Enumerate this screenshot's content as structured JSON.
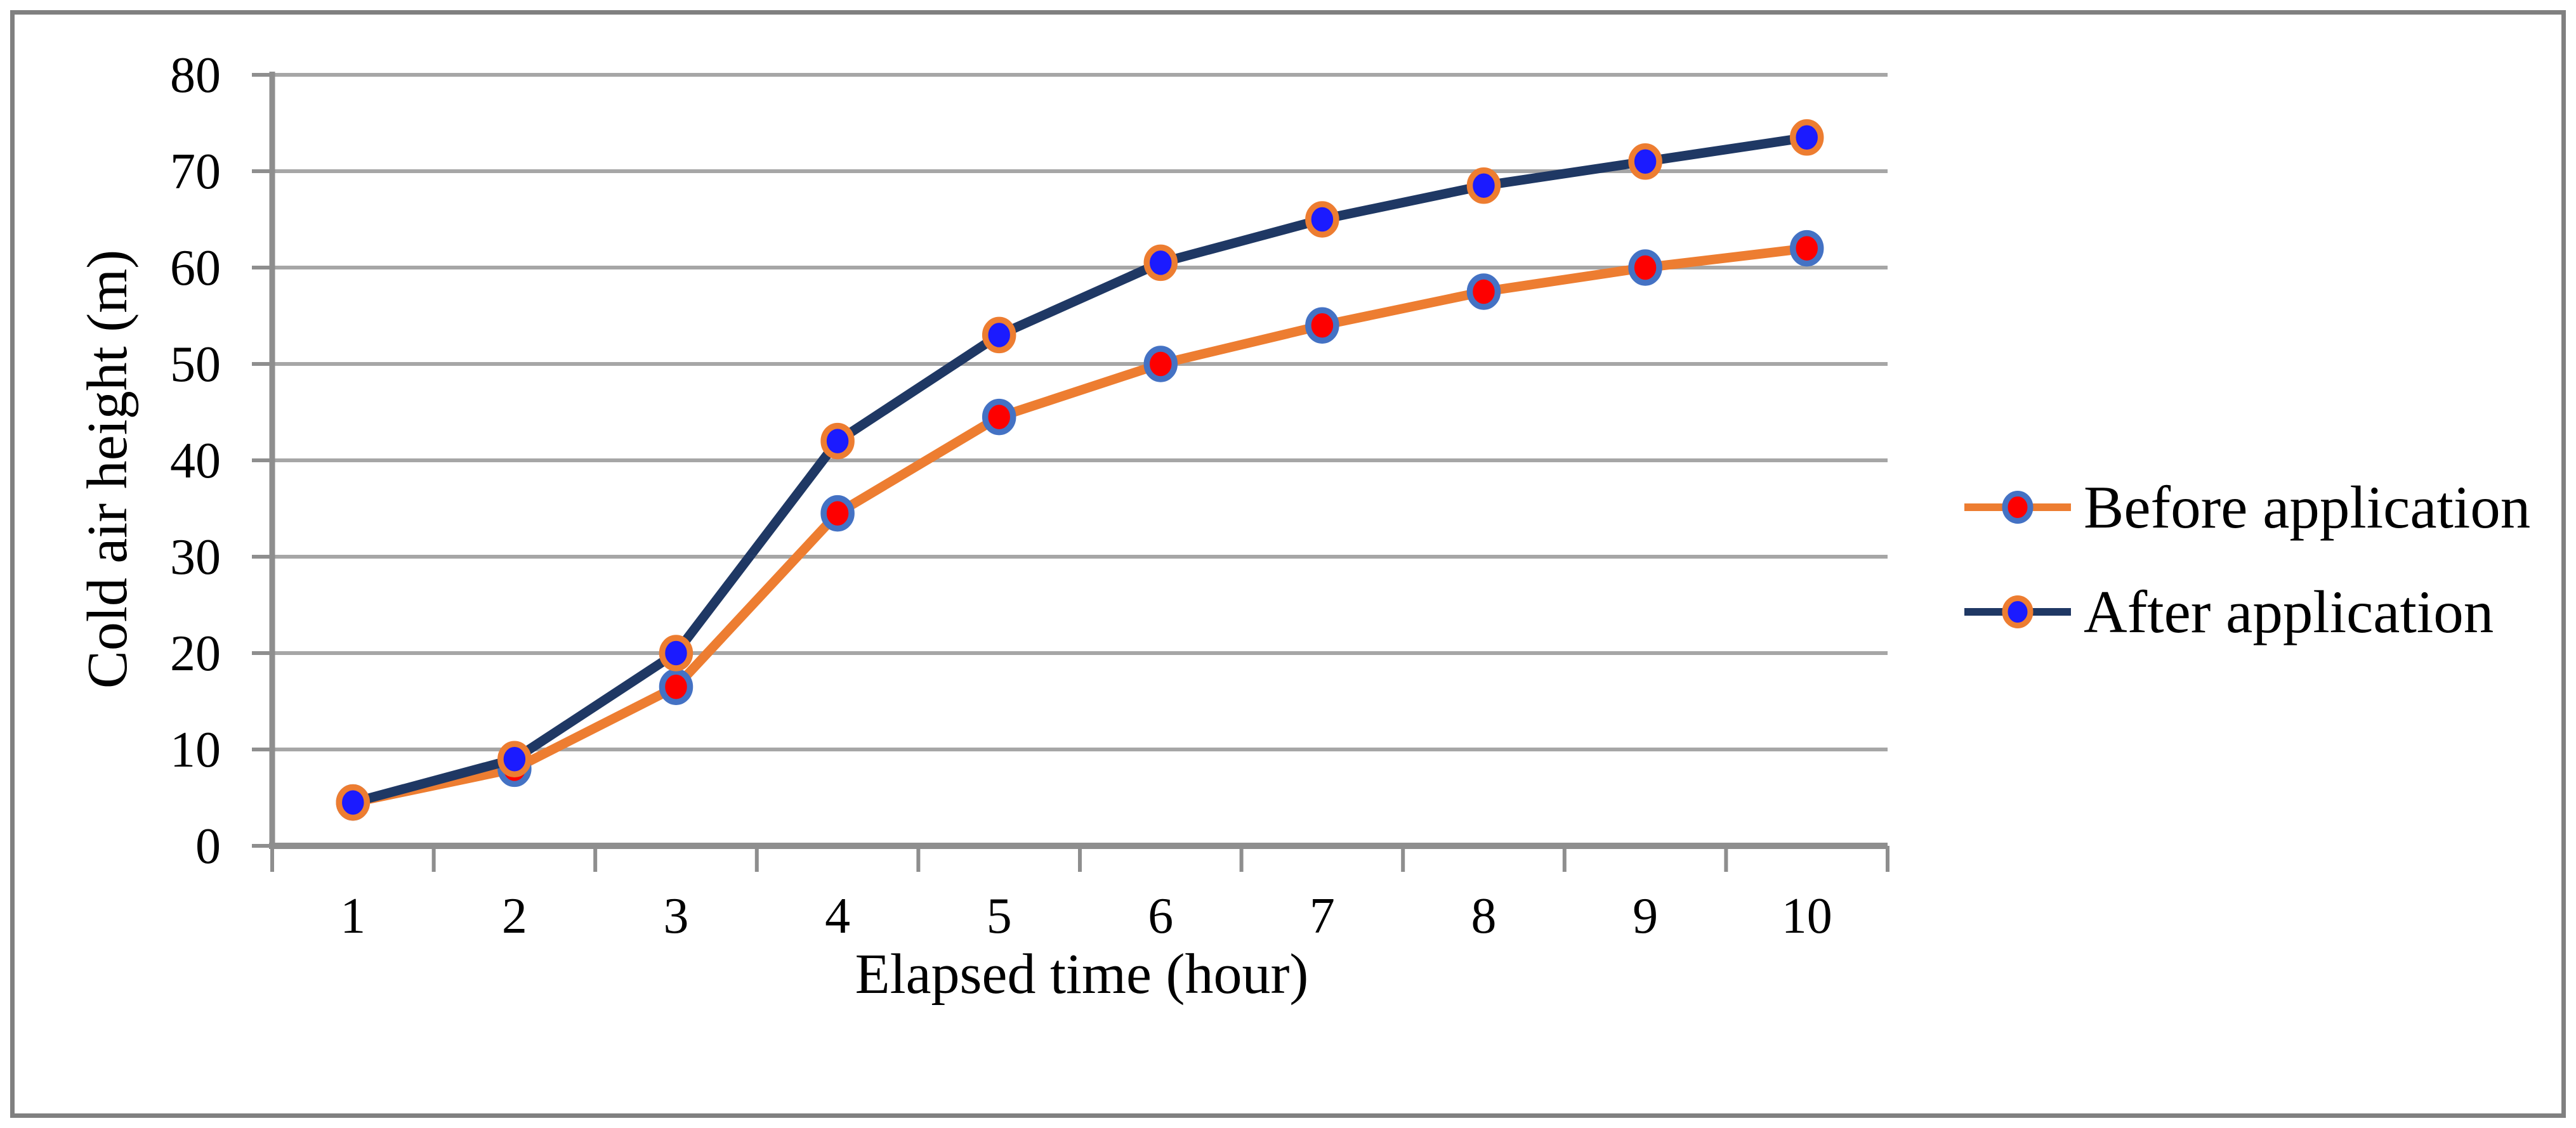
{
  "chart_data": {
    "type": "line",
    "title": "",
    "categories": [
      "1",
      "2",
      "3",
      "4",
      "5",
      "6",
      "7",
      "8",
      "9",
      "10"
    ],
    "series": [
      {
        "name": "Before application",
        "values": [
          4.5,
          8,
          16.5,
          34.5,
          44.5,
          50,
          54,
          57.5,
          60,
          62
        ],
        "line_color": "#ED7D31",
        "marker_fill": "#FE0000",
        "marker_border": "#4472C4"
      },
      {
        "name": "After application",
        "values": [
          4.5,
          9,
          20,
          42,
          53,
          60.5,
          65,
          68.5,
          71,
          73.5
        ],
        "line_color": "#1F3864",
        "marker_fill": "#1B1BFF",
        "marker_border": "#ED7D31"
      }
    ],
    "xlabel": "Elapsed time (hour)",
    "ylabel": "Cold air height (m)",
    "ylim": [
      0,
      80
    ],
    "yticks": [
      0,
      10,
      20,
      30,
      40,
      50,
      60,
      70,
      80
    ],
    "grid": "horizontal-only",
    "legend_position": "right-middle",
    "colors": {
      "gridline": "#A6A6A6",
      "axis": "#8E8E8E",
      "frame_border": "#808080",
      "text": "#000000",
      "background": "#FFFFFF"
    }
  }
}
